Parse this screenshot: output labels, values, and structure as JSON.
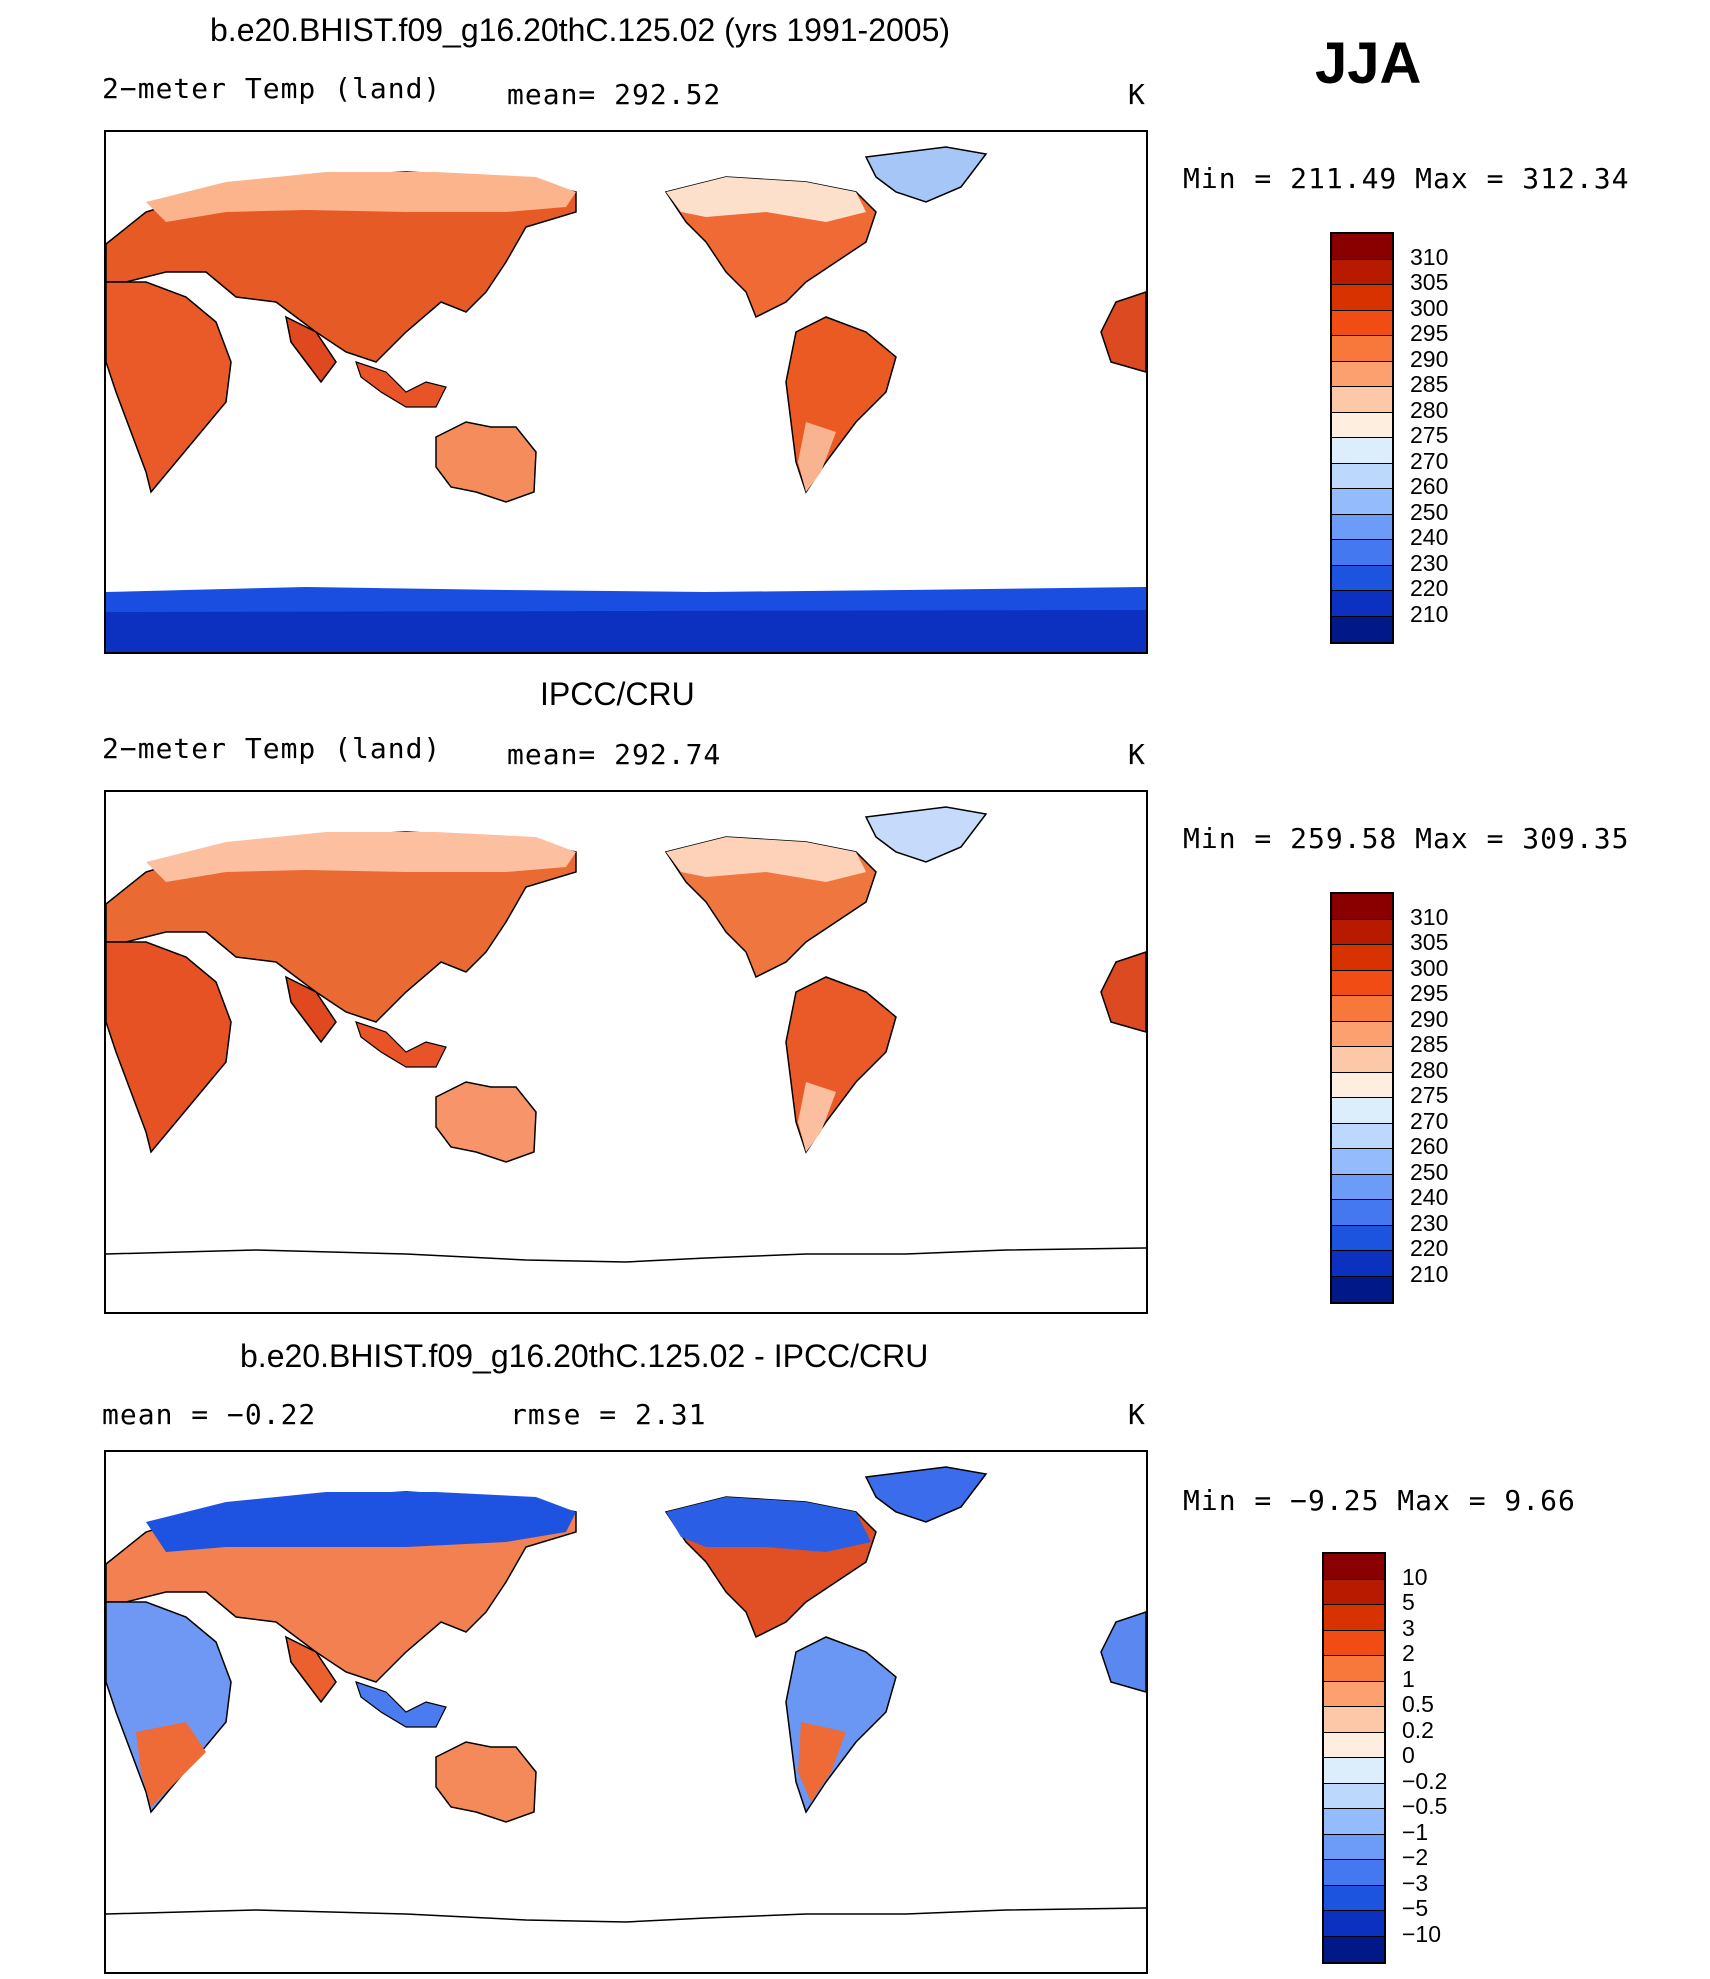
{
  "season": "JJA",
  "panels": [
    {
      "id": "model",
      "title": "b.e20.BHIST.f09_g16.20thC.125.02 (yrs 1991-2005)",
      "left_label": "2−meter Temp (land)",
      "center_label": "mean= 292.52",
      "units": "K",
      "minmax": "Min = 211.49 Max = 312.34"
    },
    {
      "id": "obs",
      "title": "IPCC/CRU",
      "left_label": "2−meter Temp (land)",
      "center_label": "mean= 292.74",
      "units": "K",
      "minmax": "Min = 259.58 Max = 309.35"
    },
    {
      "id": "diff",
      "title": "b.e20.BHIST.f09_g16.20thC.125.02 - IPCC/CRU",
      "left_label": "mean = −0.22",
      "center_label": "rmse = 2.31",
      "units": "K",
      "minmax": "Min = −9.25 Max = 9.66"
    }
  ],
  "chart_data": [
    {
      "type": "heatmap",
      "title": "b.e20.BHIST.f09_g16.20thC.125.02 (yrs 1991-2005)",
      "variable": "2−meter Temp (land)",
      "units": "K",
      "mean": 292.52,
      "min": 211.49,
      "max": 312.34,
      "colorbar_levels": [
        "310",
        "305",
        "300",
        "295",
        "290",
        "285",
        "280",
        "275",
        "270",
        "260",
        "250",
        "240",
        "230",
        "220",
        "210"
      ],
      "colorbar_colors": [
        "#8a0000",
        "#b81a00",
        "#d83200",
        "#f04c14",
        "#f8783c",
        "#fca070",
        "#fcc8a8",
        "#fdeee0",
        "#dceefc",
        "#bcd8fc",
        "#94bcfc",
        "#6c9cf8",
        "#4478f0",
        "#1c54e0",
        "#0c30c0",
        "#001888"
      ]
    },
    {
      "type": "heatmap",
      "title": "IPCC/CRU",
      "variable": "2−meter Temp (land)",
      "units": "K",
      "mean": 292.74,
      "min": 259.58,
      "max": 309.35,
      "colorbar_levels": [
        "310",
        "305",
        "300",
        "295",
        "290",
        "285",
        "280",
        "275",
        "270",
        "260",
        "250",
        "240",
        "230",
        "220",
        "210"
      ],
      "colorbar_colors": [
        "#8a0000",
        "#b81a00",
        "#d83200",
        "#f04c14",
        "#f8783c",
        "#fca070",
        "#fcc8a8",
        "#fdeee0",
        "#dceefc",
        "#bcd8fc",
        "#94bcfc",
        "#6c9cf8",
        "#4478f0",
        "#1c54e0",
        "#0c30c0",
        "#001888"
      ]
    },
    {
      "type": "heatmap",
      "title": "b.e20.BHIST.f09_g16.20thC.125.02 - IPCC/CRU",
      "units": "K",
      "mean": -0.22,
      "rmse": 2.31,
      "min": -9.25,
      "max": 9.66,
      "colorbar_levels": [
        "10",
        "5",
        "3",
        "2",
        "1",
        "0.5",
        "0.2",
        "0",
        "−0.2",
        "−0.5",
        "−1",
        "−2",
        "−3",
        "−5",
        "−10"
      ],
      "colorbar_colors": [
        "#8a0000",
        "#b81a00",
        "#d83200",
        "#f04c14",
        "#f8783c",
        "#fca070",
        "#fcc8a8",
        "#fdeee0",
        "#dceefc",
        "#bcd8fc",
        "#94bcfc",
        "#6c9cf8",
        "#4478f0",
        "#1c54e0",
        "#0c30c0",
        "#001888"
      ]
    }
  ]
}
